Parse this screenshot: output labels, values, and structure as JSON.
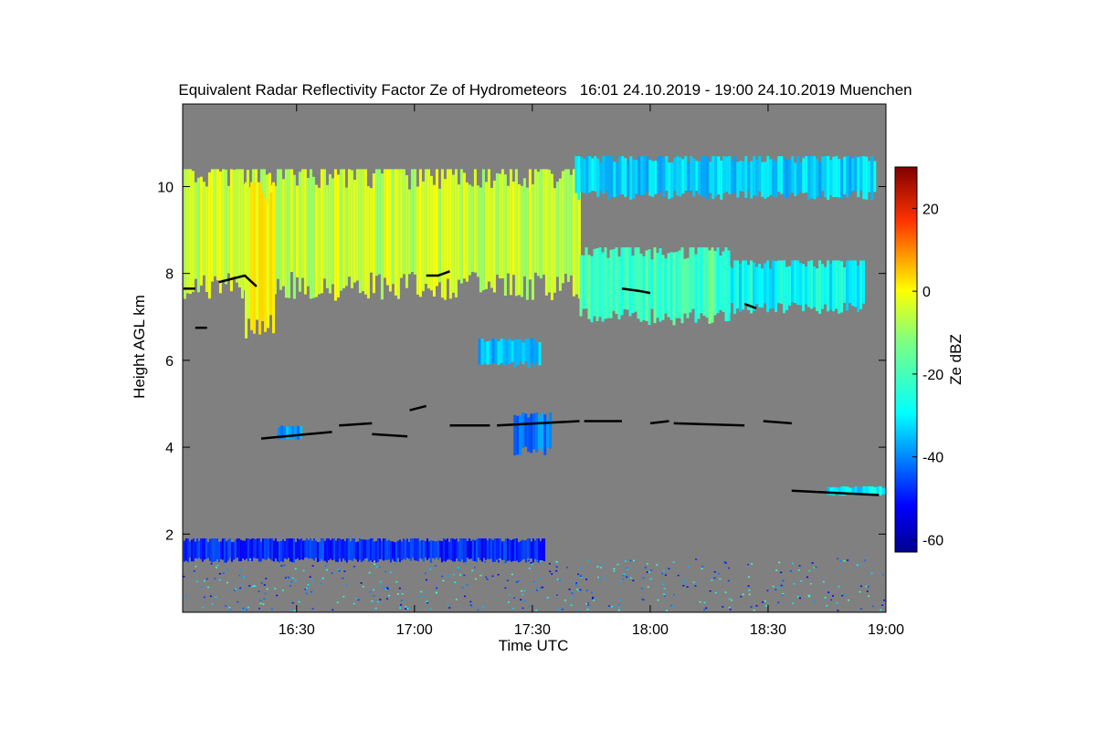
{
  "chart_data": {
    "type": "heatmap",
    "title": "Equivalent Radar Reflectivity Factor Ze of Hydrometeors   16:01 24.10.2019 - 19:00 24.10.2019 Muenchen",
    "xlabel": "Time UTC",
    "ylabel": "Height AGL km",
    "xlim_hours": [
      16.0167,
      19.0
    ],
    "ylim_km": [
      0.2,
      11.9
    ],
    "x_ticks": [
      {
        "value": 16.5,
        "label": "16:30"
      },
      {
        "value": 17.0,
        "label": "17:00"
      },
      {
        "value": 17.5,
        "label": "17:30"
      },
      {
        "value": 18.0,
        "label": "18:00"
      },
      {
        "value": 18.5,
        "label": "18:30"
      },
      {
        "value": 19.0,
        "label": "19:00"
      }
    ],
    "y_ticks": [
      {
        "value": 2,
        "label": "2"
      },
      {
        "value": 4,
        "label": "4"
      },
      {
        "value": 6,
        "label": "6"
      },
      {
        "value": 8,
        "label": "8"
      },
      {
        "value": 10,
        "label": "10"
      }
    ],
    "grid": false,
    "background_color": "#808080",
    "colorbar": {
      "label": "Ze dBZ",
      "range": [
        -63,
        30
      ],
      "ticks": [
        {
          "value": 20,
          "label": "20"
        },
        {
          "value": 0,
          "label": "0"
        },
        {
          "value": -20,
          "label": "-20"
        },
        {
          "value": -40,
          "label": "-40"
        },
        {
          "value": -60,
          "label": "-60"
        }
      ],
      "colormap": "jet"
    },
    "regions": [
      {
        "name": "upper-cloud-main",
        "x_start": 16.02,
        "x_end": 17.7,
        "z_bottom": 7.7,
        "z_top": 10.4,
        "ze": -10
      },
      {
        "name": "upper-cloud-core",
        "x_start": 16.28,
        "x_end": 16.4,
        "z_bottom": 6.9,
        "z_top": 10.1,
        "ze": -5
      },
      {
        "name": "upper-cloud-mid",
        "x_start": 17.7,
        "x_end": 18.33,
        "z_bottom": 7.0,
        "z_top": 8.6,
        "ze": -22
      },
      {
        "name": "upper-cloud-east",
        "x_start": 18.33,
        "x_end": 18.9,
        "z_bottom": 7.2,
        "z_top": 8.3,
        "ze": -28
      },
      {
        "name": "high-fragments",
        "x_start": 17.68,
        "x_end": 18.95,
        "z_bottom": 9.8,
        "z_top": 10.7,
        "ze": -32
      },
      {
        "name": "cloud-6km",
        "x_start": 17.27,
        "x_end": 17.53,
        "z_bottom": 5.9,
        "z_top": 6.5,
        "ze": -34
      },
      {
        "name": "cloud-4km-a",
        "x_start": 16.42,
        "x_end": 16.52,
        "z_bottom": 4.2,
        "z_top": 4.5,
        "ze": -38
      },
      {
        "name": "cloud-4km-b",
        "x_start": 17.42,
        "x_end": 17.58,
        "z_bottom": 3.9,
        "z_top": 4.8,
        "ze": -40
      },
      {
        "name": "cloud-3km",
        "x_start": 18.75,
        "x_end": 19.0,
        "z_bottom": 2.9,
        "z_top": 3.1,
        "ze": -30
      },
      {
        "name": "boundary-layer-echo",
        "x_start": 16.02,
        "x_end": 17.55,
        "z_bottom": 1.4,
        "z_top": 1.9,
        "ze": -48
      }
    ],
    "cloud_base_segments": [
      {
        "x": [
          16.02,
          16.07
        ],
        "z": [
          7.65,
          7.65
        ]
      },
      {
        "x": [
          16.17,
          16.28,
          16.33
        ],
        "z": [
          7.8,
          7.95,
          7.7
        ]
      },
      {
        "x": [
          16.07,
          16.12
        ],
        "z": [
          6.75,
          6.75
        ]
      },
      {
        "x": [
          17.05,
          17.1,
          17.15
        ],
        "z": [
          7.95,
          7.95,
          8.05
        ]
      },
      {
        "x": [
          17.88,
          17.95,
          18.0
        ],
        "z": [
          7.65,
          7.6,
          7.55
        ]
      },
      {
        "x": [
          18.4,
          18.45
        ],
        "z": [
          7.3,
          7.2
        ]
      },
      {
        "x": [
          16.35,
          16.55,
          16.65
        ],
        "z": [
          4.2,
          4.3,
          4.35
        ]
      },
      {
        "x": [
          16.68,
          16.82
        ],
        "z": [
          4.5,
          4.55
        ]
      },
      {
        "x": [
          16.82,
          16.97
        ],
        "z": [
          4.3,
          4.25
        ]
      },
      {
        "x": [
          16.98,
          17.05
        ],
        "z": [
          4.85,
          4.95
        ]
      },
      {
        "x": [
          17.15,
          17.32
        ],
        "z": [
          4.5,
          4.5
        ]
      },
      {
        "x": [
          17.35,
          17.7
        ],
        "z": [
          4.5,
          4.6
        ]
      },
      {
        "x": [
          17.72,
          17.88
        ],
        "z": [
          4.6,
          4.6
        ]
      },
      {
        "x": [
          18.0,
          18.08
        ],
        "z": [
          4.55,
          4.6
        ]
      },
      {
        "x": [
          18.1,
          18.4
        ],
        "z": [
          4.55,
          4.5
        ]
      },
      {
        "x": [
          18.48,
          18.6
        ],
        "z": [
          4.6,
          4.55
        ]
      },
      {
        "x": [
          18.6,
          18.97
        ],
        "z": [
          3.0,
          2.9
        ]
      }
    ]
  }
}
